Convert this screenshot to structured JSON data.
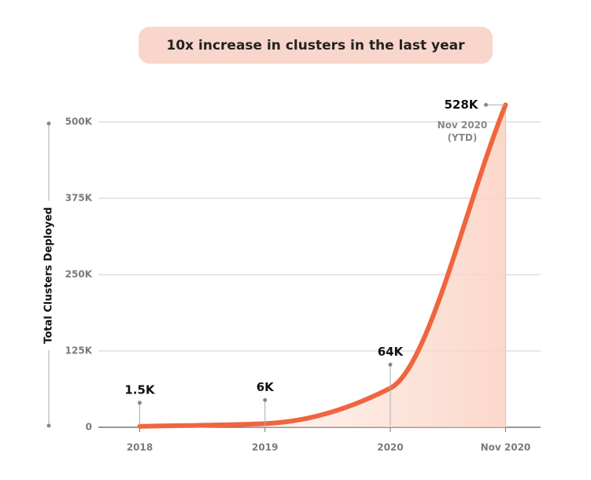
{
  "chart_data": {
    "type": "line",
    "title": "10x increase in clusters in the last year",
    "y_label": "Total Clusters Deployed",
    "x": [
      2018,
      2019,
      2020,
      2020.92
    ],
    "values": [
      1500,
      6000,
      64000,
      528000
    ],
    "value_labels": [
      "1.5K",
      "6K",
      "64K",
      "528K"
    ],
    "color": "#f0653e",
    "annotation": [
      "Nov 2020",
      "(YTD)"
    ],
    "xlim": [
      2017.67,
      2021.2
    ],
    "xticks": [
      2018,
      2019,
      2020,
      {
        "value": 2020.92,
        "label": "Nov 2020"
      }
    ],
    "ylim": [
      0,
      500000
    ],
    "yticks": [
      0,
      {
        "value": 125000,
        "label": "125K"
      },
      {
        "value": 250000,
        "label": "250K"
      },
      {
        "value": 375000,
        "label": "375K"
      },
      {
        "value": 500000,
        "label": "500K"
      }
    ],
    "grid": true
  }
}
